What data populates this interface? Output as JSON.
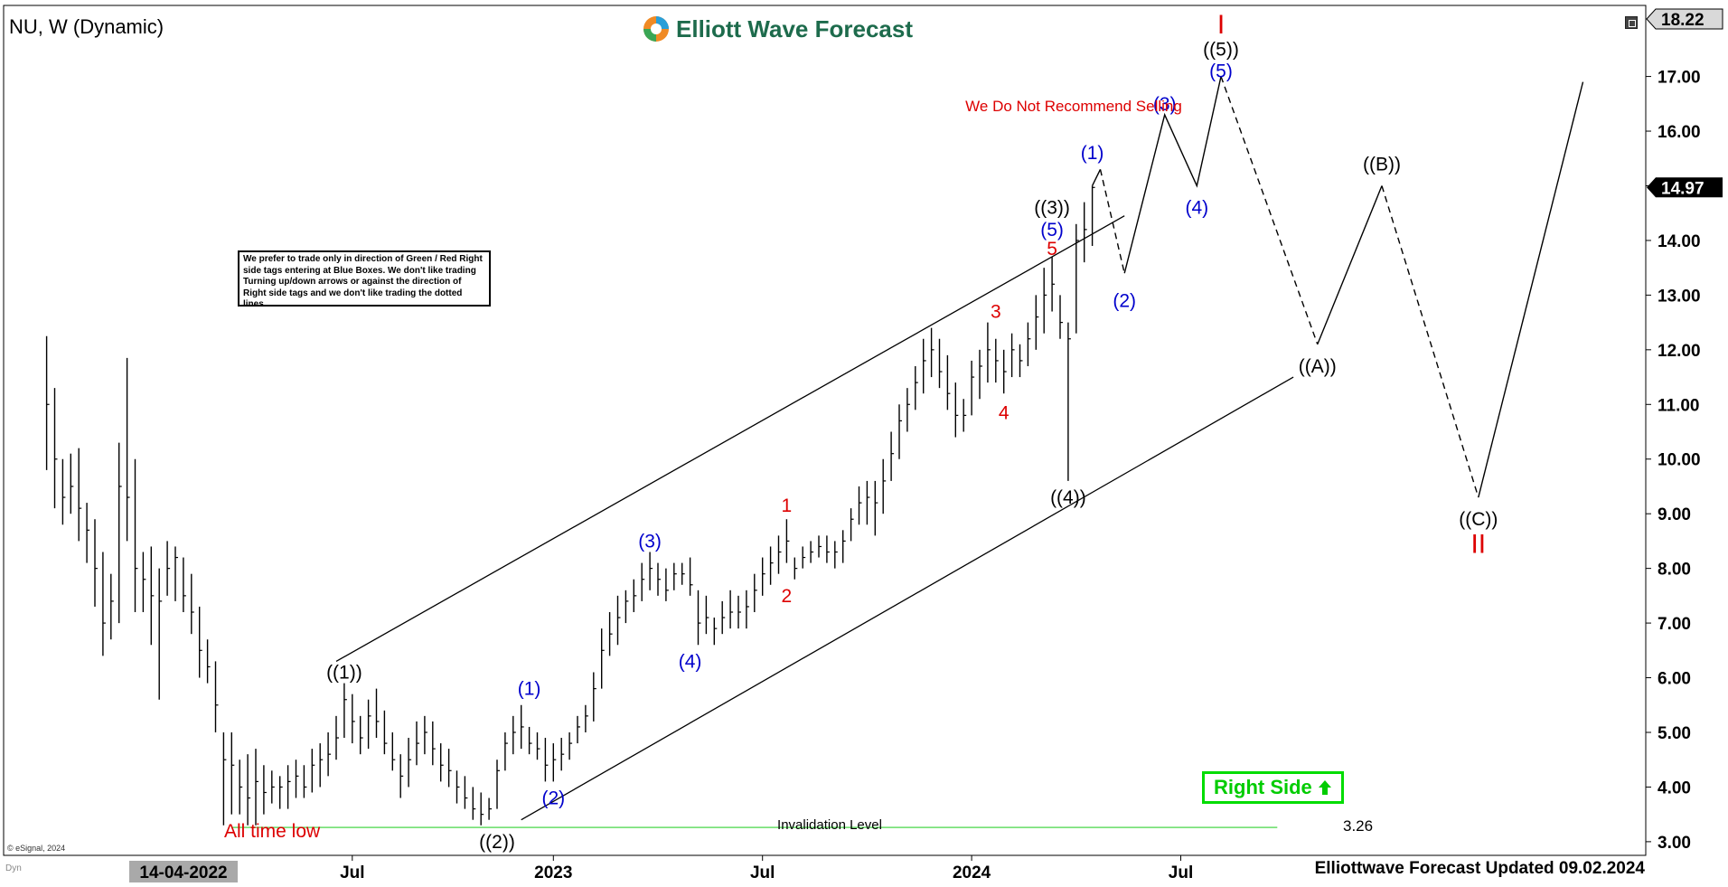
{
  "header": {
    "ticker": "NU, W (Dynamic)",
    "brand": "Elliott Wave Forecast",
    "footer": "Elliottwave Forecast Updated 09.02.2024",
    "copyright": "© eSignal, 2024",
    "dyn": "Dyn"
  },
  "notes": {
    "legend": "We prefer to trade only in direction of Green / Red Right side tags entering at Blue Boxes. We don't like trading Turning up/down arrows or against the direction of Right side tags and we don't like trading the dotted lines.",
    "recommend": "We Do Not Recommend Selling",
    "right_side": "Right Side",
    "all_time_low": "All time low",
    "invalidation": "Invalidation Level",
    "invalidation_value": "3.26"
  },
  "colors": {
    "bars": "#000000",
    "blue_label": "#0000cc",
    "red_label": "#dd0000",
    "black_label": "#000000",
    "invalidation_line": "#66dd66",
    "right_side": "#00cc00",
    "brand": "#1d6b4c"
  },
  "chart_data": {
    "type": "bar",
    "price_axis": {
      "ticks": [
        "3.00",
        "4.00",
        "5.00",
        "6.00",
        "7.00",
        "8.00",
        "9.00",
        "10.00",
        "11.00",
        "12.00",
        "13.00",
        "14.00",
        "15.00",
        "16.00",
        "17.00"
      ],
      "ylim": [
        2.75,
        18.3
      ],
      "current_price": "14.97",
      "top_price": "18.22"
    },
    "time_axis": {
      "labels": [
        "14-04-2022",
        "Jul",
        "2023",
        "Jul",
        "2024",
        "Jul"
      ],
      "label_weeks": [
        0,
        12,
        37,
        63,
        89,
        115
      ]
    },
    "ohlc_weeks": [
      {
        "w": -26,
        "h": 12.25,
        "l": 9.8,
        "c": 11.0
      },
      {
        "w": -25,
        "h": 11.3,
        "l": 9.1,
        "c": 10.0
      },
      {
        "w": -24,
        "h": 10.0,
        "l": 8.8,
        "c": 9.3
      },
      {
        "w": -23,
        "h": 10.1,
        "l": 9.0,
        "c": 9.5
      },
      {
        "w": -22,
        "h": 10.2,
        "l": 8.5,
        "c": 9.1
      },
      {
        "w": -21,
        "h": 9.2,
        "l": 8.1,
        "c": 8.7
      },
      {
        "w": -20,
        "h": 8.9,
        "l": 7.3,
        "c": 8.0
      },
      {
        "w": -19,
        "h": 8.3,
        "l": 6.4,
        "c": 7.0
      },
      {
        "w": -18,
        "h": 7.9,
        "l": 6.7,
        "c": 7.4
      },
      {
        "w": -17,
        "h": 10.3,
        "l": 7.0,
        "c": 9.5
      },
      {
        "w": -16,
        "h": 11.85,
        "l": 8.5,
        "c": 9.3
      },
      {
        "w": -15,
        "h": 10.0,
        "l": 7.2,
        "c": 8.0
      },
      {
        "w": -14,
        "h": 8.3,
        "l": 7.2,
        "c": 7.8
      },
      {
        "w": -13,
        "h": 8.4,
        "l": 6.6,
        "c": 7.5
      },
      {
        "w": -12,
        "h": 8.0,
        "l": 5.6,
        "c": 7.4
      },
      {
        "w": -11,
        "h": 8.5,
        "l": 7.5,
        "c": 8.0
      },
      {
        "w": -10,
        "h": 8.4,
        "l": 7.4,
        "c": 8.2
      },
      {
        "w": -9,
        "h": 8.2,
        "l": 7.2,
        "c": 7.5
      },
      {
        "w": -8,
        "h": 7.9,
        "l": 6.8,
        "c": 7.2
      },
      {
        "w": -7,
        "h": 7.3,
        "l": 6.0,
        "c": 6.5
      },
      {
        "w": -6,
        "h": 6.7,
        "l": 5.9,
        "c": 6.2
      },
      {
        "w": -5,
        "h": 6.3,
        "l": 5.0,
        "c": 5.5
      },
      {
        "w": -4,
        "h": 5.0,
        "l": 3.3,
        "c": 4.5
      },
      {
        "w": -3,
        "h": 5.0,
        "l": 3.5,
        "c": 4.4
      },
      {
        "w": -2,
        "h": 4.5,
        "l": 3.5,
        "c": 4.0
      },
      {
        "w": -1,
        "h": 4.6,
        "l": 3.3,
        "c": 3.8
      },
      {
        "w": 0,
        "h": 4.7,
        "l": 3.3,
        "c": 4.1
      },
      {
        "w": 1,
        "h": 4.4,
        "l": 3.5,
        "c": 3.9
      },
      {
        "w": 2,
        "h": 4.3,
        "l": 3.7,
        "c": 4.0
      },
      {
        "w": 3,
        "h": 4.2,
        "l": 3.6,
        "c": 4.0
      },
      {
        "w": 4,
        "h": 4.4,
        "l": 3.6,
        "c": 4.1
      },
      {
        "w": 5,
        "h": 4.5,
        "l": 3.8,
        "c": 4.2
      },
      {
        "w": 6,
        "h": 4.4,
        "l": 3.8,
        "c": 4.0
      },
      {
        "w": 7,
        "h": 4.7,
        "l": 3.9,
        "c": 4.4
      },
      {
        "w": 8,
        "h": 4.8,
        "l": 4.0,
        "c": 4.5
      },
      {
        "w": 9,
        "h": 5.0,
        "l": 4.2,
        "c": 4.6
      },
      {
        "w": 10,
        "h": 5.3,
        "l": 4.5,
        "c": 4.9
      },
      {
        "w": 11,
        "h": 5.9,
        "l": 4.9,
        "c": 5.6
      },
      {
        "w": 12,
        "h": 5.7,
        "l": 4.8,
        "c": 5.2
      },
      {
        "w": 13,
        "h": 5.3,
        "l": 4.6,
        "c": 4.9
      },
      {
        "w": 14,
        "h": 5.6,
        "l": 4.7,
        "c": 5.3
      },
      {
        "w": 15,
        "h": 5.8,
        "l": 4.9,
        "c": 5.2
      },
      {
        "w": 16,
        "h": 5.4,
        "l": 4.6,
        "c": 4.8
      },
      {
        "w": 17,
        "h": 5.0,
        "l": 4.3,
        "c": 4.5
      },
      {
        "w": 18,
        "h": 4.6,
        "l": 3.8,
        "c": 4.2
      },
      {
        "w": 19,
        "h": 4.9,
        "l": 4.0,
        "c": 4.5
      },
      {
        "w": 20,
        "h": 5.2,
        "l": 4.4,
        "c": 4.8
      },
      {
        "w": 21,
        "h": 5.3,
        "l": 4.6,
        "c": 5.0
      },
      {
        "w": 22,
        "h": 5.2,
        "l": 4.4,
        "c": 4.7
      },
      {
        "w": 23,
        "h": 4.8,
        "l": 4.1,
        "c": 4.4
      },
      {
        "w": 24,
        "h": 4.7,
        "l": 4.0,
        "c": 4.3
      },
      {
        "w": 25,
        "h": 4.3,
        "l": 3.7,
        "c": 4.0
      },
      {
        "w": 26,
        "h": 4.2,
        "l": 3.6,
        "c": 3.8
      },
      {
        "w": 27,
        "h": 4.0,
        "l": 3.4,
        "c": 3.6
      },
      {
        "w": 28,
        "h": 3.9,
        "l": 3.3,
        "c": 3.5
      },
      {
        "w": 29,
        "h": 3.8,
        "l": 3.4,
        "c": 3.6
      },
      {
        "w": 30,
        "h": 4.5,
        "l": 3.6,
        "c": 4.3
      },
      {
        "w": 31,
        "h": 5.0,
        "l": 4.3,
        "c": 4.8
      },
      {
        "w": 32,
        "h": 5.3,
        "l": 4.6,
        "c": 5.0
      },
      {
        "w": 33,
        "h": 5.5,
        "l": 4.7,
        "c": 5.1
      },
      {
        "w": 34,
        "h": 5.1,
        "l": 4.6,
        "c": 4.8
      },
      {
        "w": 35,
        "h": 5.0,
        "l": 4.5,
        "c": 4.7
      },
      {
        "w": 36,
        "h": 4.9,
        "l": 4.1,
        "c": 4.4
      },
      {
        "w": 37,
        "h": 4.8,
        "l": 4.1,
        "c": 4.5
      },
      {
        "w": 38,
        "h": 4.9,
        "l": 4.3,
        "c": 4.6
      },
      {
        "w": 39,
        "h": 5.0,
        "l": 4.5,
        "c": 4.8
      },
      {
        "w": 40,
        "h": 5.3,
        "l": 4.8,
        "c": 5.1
      },
      {
        "w": 41,
        "h": 5.5,
        "l": 5.0,
        "c": 5.3
      },
      {
        "w": 42,
        "h": 6.1,
        "l": 5.2,
        "c": 5.8
      },
      {
        "w": 43,
        "h": 6.9,
        "l": 5.8,
        "c": 6.5
      },
      {
        "w": 44,
        "h": 7.2,
        "l": 6.4,
        "c": 6.8
      },
      {
        "w": 45,
        "h": 7.5,
        "l": 6.6,
        "c": 7.1
      },
      {
        "w": 46,
        "h": 7.6,
        "l": 7.0,
        "c": 7.4
      },
      {
        "w": 47,
        "h": 7.8,
        "l": 7.2,
        "c": 7.5
      },
      {
        "w": 48,
        "h": 8.1,
        "l": 7.4,
        "c": 7.8
      },
      {
        "w": 49,
        "h": 8.3,
        "l": 7.6,
        "c": 8.0
      },
      {
        "w": 50,
        "h": 8.1,
        "l": 7.5,
        "c": 7.8
      },
      {
        "w": 51,
        "h": 8.0,
        "l": 7.4,
        "c": 7.6
      },
      {
        "w": 52,
        "h": 8.1,
        "l": 7.6,
        "c": 7.9
      },
      {
        "w": 53,
        "h": 8.1,
        "l": 7.7,
        "c": 7.9
      },
      {
        "w": 54,
        "h": 8.2,
        "l": 7.5,
        "c": 7.7
      },
      {
        "w": 55,
        "h": 7.6,
        "l": 6.6,
        "c": 7.0
      },
      {
        "w": 56,
        "h": 7.5,
        "l": 6.8,
        "c": 7.1
      },
      {
        "w": 57,
        "h": 7.1,
        "l": 6.6,
        "c": 6.9
      },
      {
        "w": 58,
        "h": 7.4,
        "l": 6.8,
        "c": 7.1
      },
      {
        "w": 59,
        "h": 7.6,
        "l": 6.9,
        "c": 7.2
      },
      {
        "w": 60,
        "h": 7.5,
        "l": 6.9,
        "c": 7.2
      },
      {
        "w": 61,
        "h": 7.6,
        "l": 6.9,
        "c": 7.3
      },
      {
        "w": 62,
        "h": 7.9,
        "l": 7.2,
        "c": 7.6
      },
      {
        "w": 63,
        "h": 8.2,
        "l": 7.5,
        "c": 7.9
      },
      {
        "w": 64,
        "h": 8.4,
        "l": 7.7,
        "c": 8.1
      },
      {
        "w": 65,
        "h": 8.6,
        "l": 7.9,
        "c": 8.3
      },
      {
        "w": 66,
        "h": 8.9,
        "l": 8.1,
        "c": 8.5
      },
      {
        "w": 67,
        "h": 8.2,
        "l": 7.8,
        "c": 8.0
      },
      {
        "w": 68,
        "h": 8.4,
        "l": 8.0,
        "c": 8.2
      },
      {
        "w": 69,
        "h": 8.5,
        "l": 8.1,
        "c": 8.3
      },
      {
        "w": 70,
        "h": 8.6,
        "l": 8.2,
        "c": 8.4
      },
      {
        "w": 71,
        "h": 8.6,
        "l": 8.1,
        "c": 8.3
      },
      {
        "w": 72,
        "h": 8.5,
        "l": 8.0,
        "c": 8.3
      },
      {
        "w": 73,
        "h": 8.7,
        "l": 8.1,
        "c": 8.5
      },
      {
        "w": 74,
        "h": 9.1,
        "l": 8.5,
        "c": 8.9
      },
      {
        "w": 75,
        "h": 9.5,
        "l": 8.8,
        "c": 9.2
      },
      {
        "w": 76,
        "h": 9.6,
        "l": 8.8,
        "c": 9.3
      },
      {
        "w": 77,
        "h": 9.6,
        "l": 8.6,
        "c": 9.2
      },
      {
        "w": 78,
        "h": 10.0,
        "l": 9.0,
        "c": 9.6
      },
      {
        "w": 79,
        "h": 10.5,
        "l": 9.6,
        "c": 10.1
      },
      {
        "w": 80,
        "h": 11.0,
        "l": 10.0,
        "c": 10.7
      },
      {
        "w": 81,
        "h": 11.3,
        "l": 10.5,
        "c": 11.0
      },
      {
        "w": 82,
        "h": 11.7,
        "l": 10.9,
        "c": 11.4
      },
      {
        "w": 83,
        "h": 12.2,
        "l": 11.2,
        "c": 11.8
      },
      {
        "w": 84,
        "h": 12.4,
        "l": 11.5,
        "c": 12.0
      },
      {
        "w": 85,
        "h": 12.2,
        "l": 11.3,
        "c": 11.6
      },
      {
        "w": 86,
        "h": 11.9,
        "l": 10.9,
        "c": 11.2
      },
      {
        "w": 87,
        "h": 11.4,
        "l": 10.4,
        "c": 10.8
      },
      {
        "w": 88,
        "h": 11.1,
        "l": 10.5,
        "c": 10.8
      },
      {
        "w": 89,
        "h": 11.8,
        "l": 10.8,
        "c": 11.5
      },
      {
        "w": 90,
        "h": 12.0,
        "l": 11.1,
        "c": 11.7
      },
      {
        "w": 91,
        "h": 12.5,
        "l": 11.4,
        "c": 12.0
      },
      {
        "w": 92,
        "h": 12.2,
        "l": 11.4,
        "c": 11.8
      },
      {
        "w": 93,
        "h": 12.0,
        "l": 11.2,
        "c": 11.6
      },
      {
        "w": 94,
        "h": 12.3,
        "l": 11.5,
        "c": 12.0
      },
      {
        "w": 95,
        "h": 12.1,
        "l": 11.5,
        "c": 11.8
      },
      {
        "w": 96,
        "h": 12.5,
        "l": 11.7,
        "c": 12.2
      },
      {
        "w": 97,
        "h": 13.0,
        "l": 12.0,
        "c": 12.6
      },
      {
        "w": 98,
        "h": 13.5,
        "l": 12.3,
        "c": 13.0
      },
      {
        "w": 99,
        "h": 13.7,
        "l": 12.7,
        "c": 13.2
      },
      {
        "w": 100,
        "h": 13.0,
        "l": 12.2,
        "c": 12.5
      },
      {
        "w": 101,
        "h": 12.5,
        "l": 9.6,
        "c": 12.2
      },
      {
        "w": 102,
        "h": 14.3,
        "l": 12.3,
        "c": 14.0
      },
      {
        "w": 103,
        "h": 14.7,
        "l": 13.6,
        "c": 14.2
      },
      {
        "w": 104,
        "h": 15.0,
        "l": 13.9,
        "c": 14.97
      }
    ],
    "projection": {
      "solid": [
        [
          104,
          15.0
        ],
        [
          105,
          15.3
        ]
      ],
      "dashed_1": [
        [
          105,
          15.3
        ],
        [
          108,
          13.4
        ]
      ],
      "solid_2": [
        [
          108,
          13.4
        ],
        [
          113,
          16.3
        ],
        [
          117,
          15.0
        ],
        [
          120,
          17.0
        ]
      ],
      "dashed_2": [
        [
          120,
          17.0
        ],
        [
          132,
          12.1
        ]
      ],
      "solid_3": [
        [
          132,
          12.1
        ],
        [
          140,
          15.0
        ]
      ],
      "dashed_3": [
        [
          140,
          15.0
        ],
        [
          152,
          9.3
        ]
      ],
      "solid_4": [
        [
          152,
          9.3
        ],
        [
          165,
          16.9
        ]
      ]
    },
    "channel": {
      "upper": [
        [
          10,
          6.3
        ],
        [
          108,
          14.45
        ]
      ],
      "lower": [
        [
          33,
          3.4
        ],
        [
          129,
          11.5
        ]
      ]
    },
    "invalidation_level": 3.26,
    "invalidation_range": [
      -3,
      127
    ],
    "wave_labels": [
      {
        "text": "((1))",
        "w": 11,
        "p": 6.1,
        "color": "black_label"
      },
      {
        "text": "((2))",
        "w": 30,
        "p": 3.0,
        "color": "black_label"
      },
      {
        "text": "(1)",
        "w": 34,
        "p": 5.8,
        "color": "blue_label"
      },
      {
        "text": "(2)",
        "w": 37,
        "p": 3.8,
        "color": "blue_label"
      },
      {
        "text": "(3)",
        "w": 49,
        "p": 8.5,
        "color": "blue_label"
      },
      {
        "text": "(4)",
        "w": 54,
        "p": 6.3,
        "color": "blue_label"
      },
      {
        "text": "1",
        "w": 66,
        "p": 9.15,
        "color": "red_label"
      },
      {
        "text": "2",
        "w": 66,
        "p": 7.5,
        "color": "red_label"
      },
      {
        "text": "3",
        "w": 92,
        "p": 12.7,
        "color": "red_label"
      },
      {
        "text": "4",
        "w": 93,
        "p": 10.85,
        "color": "red_label"
      },
      {
        "text": "5",
        "w": 99,
        "p": 13.85,
        "color": "red_label"
      },
      {
        "text": "(5)",
        "w": 99,
        "p": 14.2,
        "color": "blue_label"
      },
      {
        "text": "((3))",
        "w": 99,
        "p": 14.6,
        "color": "black_label"
      },
      {
        "text": "((4))",
        "w": 101,
        "p": 9.3,
        "color": "black_label"
      },
      {
        "text": "(1)",
        "w": 104,
        "p": 15.6,
        "color": "blue_label"
      },
      {
        "text": "(2)",
        "w": 108,
        "p": 12.9,
        "color": "blue_label"
      },
      {
        "text": "(3)",
        "w": 113,
        "p": 16.5,
        "color": "blue_label"
      },
      {
        "text": "(4)",
        "w": 117,
        "p": 14.6,
        "color": "blue_label"
      },
      {
        "text": "(5)",
        "w": 120,
        "p": 17.1,
        "color": "blue_label"
      },
      {
        "text": "((5))",
        "w": 120,
        "p": 17.5,
        "color": "black_label"
      },
      {
        "text": "I",
        "w": 120,
        "p": 17.9,
        "color": "red_label"
      },
      {
        "text": "((A))",
        "w": 132,
        "p": 11.7,
        "color": "black_label"
      },
      {
        "text": "((B))",
        "w": 140,
        "p": 15.4,
        "color": "black_label"
      },
      {
        "text": "((C))",
        "w": 152,
        "p": 8.9,
        "color": "black_label"
      },
      {
        "text": "II",
        "w": 152,
        "p": 8.4,
        "color": "red_label"
      }
    ]
  }
}
